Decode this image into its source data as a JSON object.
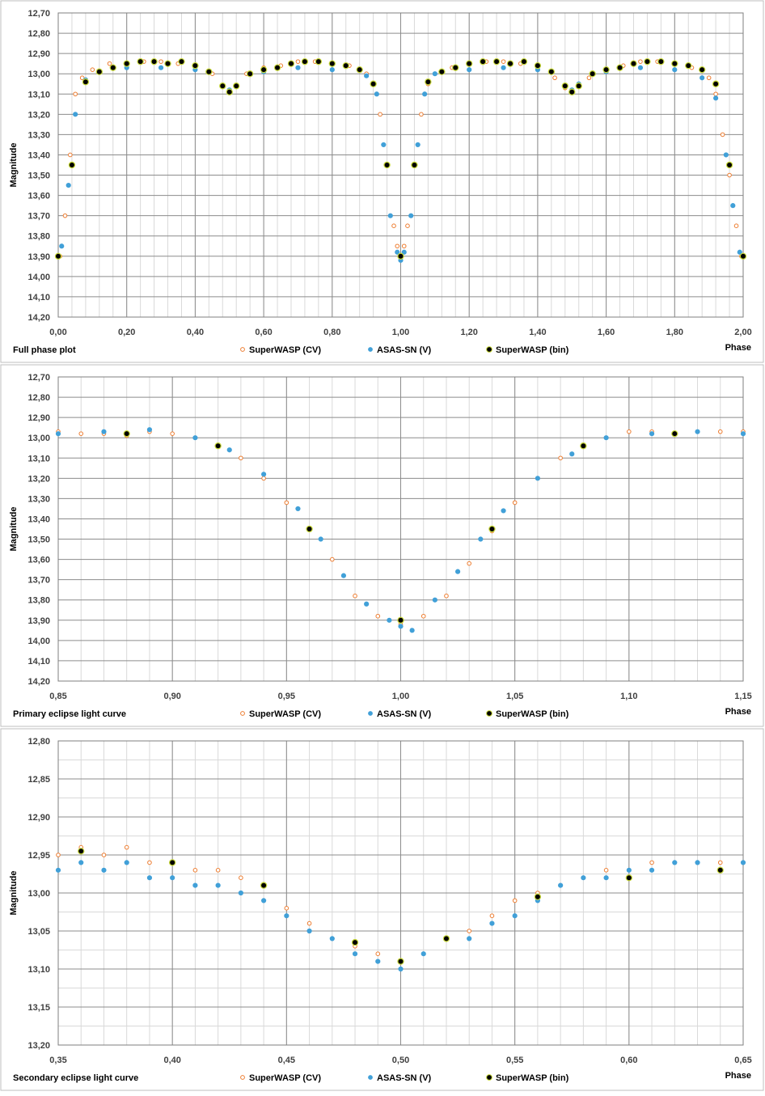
{
  "series_styles": {
    "superwasp_cv": {
      "fill": "#ffffff",
      "stroke": "#ed7d31"
    },
    "asas_sn_v": {
      "fill": "#41a0d8",
      "stroke": "#41a0d8"
    },
    "superwasp_bin": {
      "fill": "#000000",
      "stroke": "#c9d93a"
    }
  },
  "chart_data": [
    {
      "type": "scatter",
      "title": "Full phase plot",
      "xlabel": "Phase",
      "ylabel": "Magnitude",
      "xlim": [
        0.0,
        2.0
      ],
      "ylim": [
        12.7,
        14.2
      ],
      "y_reversed": true,
      "grid": true,
      "legend": "bottom",
      "legend_entries": [
        "SuperWASP (CV)",
        "ASAS-SN (V)",
        "SuperWASP (bin)"
      ],
      "x_ticks": [
        "0,00",
        "0,20",
        "0,40",
        "0,60",
        "0,80",
        "1,00",
        "1,20",
        "1,40",
        "1,60",
        "1,80",
        "2,00"
      ],
      "y_ticks": [
        "12,70",
        "12,80",
        "12,90",
        "13,00",
        "13,10",
        "13,20",
        "13,30",
        "13,40",
        "13,50",
        "13,60",
        "13,70",
        "13,80",
        "13,90",
        "14,00",
        "14,10",
        "14,20"
      ],
      "series": [
        {
          "name": "SuperWASP (CV)",
          "x": [
            0.005,
            0.02,
            0.035,
            0.05,
            0.07,
            0.1,
            0.15,
            0.2,
            0.25,
            0.3,
            0.35,
            0.4,
            0.45,
            0.48,
            0.5,
            0.52,
            0.55,
            0.6,
            0.65,
            0.7,
            0.75,
            0.8,
            0.85,
            0.9,
            0.92,
            0.94,
            0.96,
            0.98,
            0.99,
            1.0,
            1.01,
            1.02,
            1.04,
            1.06,
            1.08,
            1.1,
            1.15,
            1.2,
            1.25,
            1.3,
            1.35,
            1.4,
            1.45,
            1.48,
            1.5,
            1.52,
            1.55,
            1.6,
            1.65,
            1.7,
            1.75,
            1.8,
            1.85,
            1.9,
            1.92,
            1.94,
            1.96,
            1.98,
            1.995
          ],
          "y": [
            13.9,
            13.7,
            13.4,
            13.1,
            13.02,
            12.98,
            12.95,
            12.95,
            12.94,
            12.94,
            12.95,
            12.96,
            13.0,
            13.06,
            13.09,
            13.06,
            13.0,
            12.97,
            12.96,
            12.94,
            12.94,
            12.95,
            12.96,
            13.0,
            13.05,
            13.2,
            13.45,
            13.75,
            13.85,
            13.9,
            13.85,
            13.75,
            13.45,
            13.2,
            13.05,
            13.0,
            12.97,
            12.95,
            12.94,
            12.94,
            12.95,
            12.97,
            13.02,
            13.07,
            13.09,
            13.06,
            13.02,
            12.98,
            12.96,
            12.94,
            12.94,
            12.95,
            12.97,
            13.02,
            13.1,
            13.3,
            13.5,
            13.75,
            13.9
          ]
        },
        {
          "name": "ASAS-SN (V)",
          "x": [
            0.01,
            0.03,
            0.05,
            0.08,
            0.12,
            0.2,
            0.3,
            0.4,
            0.48,
            0.5,
            0.52,
            0.6,
            0.7,
            0.8,
            0.9,
            0.93,
            0.95,
            0.97,
            0.99,
            1.0,
            1.01,
            1.03,
            1.05,
            1.07,
            1.1,
            1.2,
            1.3,
            1.4,
            1.48,
            1.5,
            1.52,
            1.6,
            1.7,
            1.8,
            1.88,
            1.92,
            1.95,
            1.97,
            1.99
          ],
          "y": [
            13.85,
            13.55,
            13.2,
            13.03,
            12.99,
            12.97,
            12.97,
            12.98,
            13.06,
            13.08,
            13.06,
            12.99,
            12.97,
            12.98,
            13.01,
            13.1,
            13.35,
            13.7,
            13.88,
            13.92,
            13.88,
            13.7,
            13.35,
            13.1,
            13.0,
            12.98,
            12.97,
            12.98,
            13.06,
            13.08,
            13.05,
            12.99,
            12.97,
            12.98,
            13.02,
            13.12,
            13.4,
            13.65,
            13.88
          ]
        },
        {
          "name": "SuperWASP (bin)",
          "x": [
            0.0,
            0.04,
            0.08,
            0.12,
            0.16,
            0.2,
            0.24,
            0.28,
            0.32,
            0.36,
            0.4,
            0.44,
            0.48,
            0.5,
            0.52,
            0.56,
            0.6,
            0.64,
            0.68,
            0.72,
            0.76,
            0.8,
            0.84,
            0.88,
            0.92,
            0.96,
            1.0,
            1.04,
            1.08,
            1.12,
            1.16,
            1.2,
            1.24,
            1.28,
            1.32,
            1.36,
            1.4,
            1.44,
            1.48,
            1.5,
            1.52,
            1.56,
            1.6,
            1.64,
            1.68,
            1.72,
            1.76,
            1.8,
            1.84,
            1.88,
            1.92,
            1.96,
            2.0
          ],
          "y": [
            13.9,
            13.45,
            13.04,
            12.99,
            12.97,
            12.95,
            12.94,
            12.94,
            12.95,
            12.94,
            12.96,
            12.99,
            13.06,
            13.09,
            13.06,
            13.0,
            12.98,
            12.97,
            12.95,
            12.94,
            12.94,
            12.95,
            12.96,
            12.98,
            13.05,
            13.45,
            13.9,
            13.45,
            13.04,
            12.99,
            12.97,
            12.95,
            12.94,
            12.94,
            12.95,
            12.94,
            12.96,
            12.99,
            13.06,
            13.09,
            13.06,
            13.0,
            12.98,
            12.97,
            12.95,
            12.94,
            12.94,
            12.95,
            12.96,
            12.98,
            13.05,
            13.45,
            13.9
          ]
        }
      ]
    },
    {
      "type": "scatter",
      "title": "Primary eclipse light curve",
      "xlabel": "Phase",
      "ylabel": "Magnitude",
      "xlim": [
        0.85,
        1.15
      ],
      "ylim": [
        12.7,
        14.2
      ],
      "y_reversed": true,
      "grid": true,
      "legend": "bottom",
      "legend_entries": [
        "SuperWASP (CV)",
        "ASAS-SN (V)",
        "SuperWASP (bin)"
      ],
      "x_ticks": [
        "0,85",
        "0,90",
        "0,95",
        "1,00",
        "1,05",
        "1,10",
        "1,15"
      ],
      "y_ticks": [
        "12,70",
        "12,80",
        "12,90",
        "13,00",
        "13,10",
        "13,20",
        "13,30",
        "13,40",
        "13,50",
        "13,60",
        "13,70",
        "13,80",
        "13,90",
        "14,00",
        "14,10",
        "14,20"
      ],
      "series": [
        {
          "name": "SuperWASP (CV)",
          "x": [
            0.85,
            0.86,
            0.87,
            0.88,
            0.89,
            0.9,
            0.91,
            0.92,
            0.93,
            0.94,
            0.95,
            0.96,
            0.97,
            0.98,
            0.99,
            1.0,
            1.01,
            1.02,
            1.03,
            1.04,
            1.05,
            1.06,
            1.07,
            1.08,
            1.09,
            1.1,
            1.11,
            1.12,
            1.13,
            1.14,
            1.15
          ],
          "y": [
            12.97,
            12.98,
            12.98,
            12.99,
            12.97,
            12.98,
            13.0,
            13.04,
            13.1,
            13.2,
            13.32,
            13.45,
            13.6,
            13.78,
            13.88,
            13.92,
            13.88,
            13.78,
            13.62,
            13.46,
            13.32,
            13.2,
            13.1,
            13.04,
            13.0,
            12.97,
            12.97,
            12.98,
            12.97,
            12.97,
            12.97
          ]
        },
        {
          "name": "ASAS-SN (V)",
          "x": [
            0.85,
            0.87,
            0.89,
            0.91,
            0.925,
            0.94,
            0.955,
            0.965,
            0.975,
            0.985,
            0.995,
            1.0,
            1.005,
            1.015,
            1.025,
            1.035,
            1.045,
            1.06,
            1.075,
            1.09,
            1.11,
            1.13,
            1.15
          ],
          "y": [
            12.98,
            12.97,
            12.96,
            13.0,
            13.06,
            13.18,
            13.35,
            13.5,
            13.68,
            13.82,
            13.9,
            13.93,
            13.95,
            13.8,
            13.66,
            13.5,
            13.36,
            13.2,
            13.08,
            13.0,
            12.98,
            12.97,
            12.98
          ]
        },
        {
          "name": "SuperWASP (bin)",
          "x": [
            0.88,
            0.92,
            0.96,
            1.0,
            1.04,
            1.08,
            1.12
          ],
          "y": [
            12.98,
            13.04,
            13.45,
            13.9,
            13.45,
            13.04,
            12.98
          ]
        }
      ]
    },
    {
      "type": "scatter",
      "title": "Secondary eclipse light curve",
      "xlabel": "Phase",
      "ylabel": "Magnitude",
      "xlim": [
        0.35,
        0.65
      ],
      "ylim": [
        12.8,
        13.2
      ],
      "y_reversed": true,
      "grid": true,
      "legend": "bottom",
      "legend_entries": [
        "SuperWASP (CV)",
        "ASAS-SN (V)",
        "SuperWASP (bin)"
      ],
      "x_ticks": [
        "0,35",
        "0,40",
        "0,45",
        "0,50",
        "0,55",
        "0,60",
        "0,65"
      ],
      "y_ticks": [
        "12,80",
        "12,85",
        "12,90",
        "12,95",
        "13,00",
        "13,05",
        "13,10",
        "13,15",
        "13,20"
      ],
      "series": [
        {
          "name": "SuperWASP (CV)",
          "x": [
            0.35,
            0.36,
            0.37,
            0.38,
            0.39,
            0.4,
            0.41,
            0.42,
            0.43,
            0.44,
            0.45,
            0.46,
            0.47,
            0.48,
            0.49,
            0.5,
            0.51,
            0.52,
            0.53,
            0.54,
            0.55,
            0.56,
            0.57,
            0.58,
            0.59,
            0.6,
            0.61,
            0.62,
            0.63,
            0.64,
            0.65
          ],
          "y": [
            12.95,
            12.94,
            12.95,
            12.94,
            12.96,
            12.96,
            12.97,
            12.97,
            12.98,
            12.99,
            13.02,
            13.04,
            13.06,
            13.07,
            13.08,
            13.09,
            13.08,
            13.06,
            13.05,
            13.03,
            13.01,
            13.0,
            12.99,
            12.98,
            12.97,
            12.97,
            12.96,
            12.96,
            12.96,
            12.96,
            12.96
          ]
        },
        {
          "name": "ASAS-SN (V)",
          "x": [
            0.35,
            0.36,
            0.37,
            0.38,
            0.39,
            0.4,
            0.41,
            0.42,
            0.43,
            0.44,
            0.45,
            0.46,
            0.47,
            0.48,
            0.49,
            0.5,
            0.51,
            0.52,
            0.53,
            0.54,
            0.55,
            0.56,
            0.57,
            0.58,
            0.59,
            0.6,
            0.61,
            0.62,
            0.63,
            0.64,
            0.65
          ],
          "y": [
            12.97,
            12.96,
            12.97,
            12.96,
            12.98,
            12.98,
            12.99,
            12.99,
            13.0,
            13.01,
            13.03,
            13.05,
            13.06,
            13.08,
            13.09,
            13.1,
            13.08,
            13.06,
            13.06,
            13.04,
            13.03,
            13.01,
            12.99,
            12.98,
            12.98,
            12.97,
            12.97,
            12.96,
            12.96,
            12.97,
            12.96
          ]
        },
        {
          "name": "SuperWASP (bin)",
          "x": [
            0.36,
            0.4,
            0.44,
            0.48,
            0.5,
            0.52,
            0.56,
            0.6,
            0.64
          ],
          "y": [
            12.945,
            12.96,
            12.99,
            13.065,
            13.09,
            13.06,
            13.005,
            12.98,
            12.97
          ]
        }
      ]
    }
  ]
}
